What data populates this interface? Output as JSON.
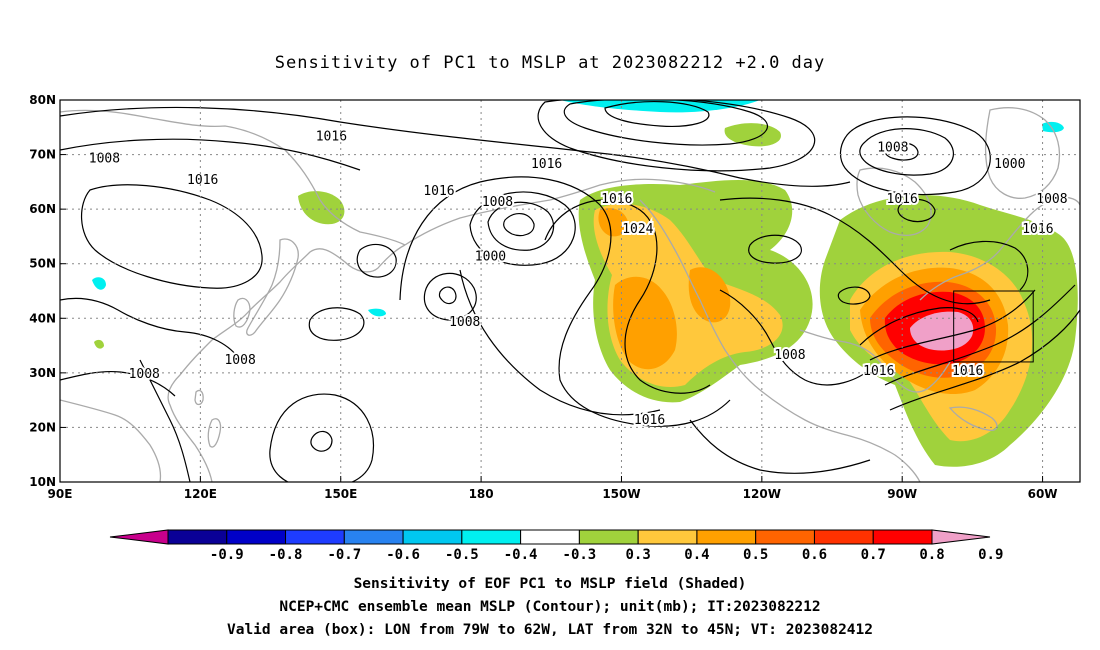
{
  "title": "Sensitivity of PC1 to MSLP at 2023082212 +2.0 day",
  "map": {
    "lon_ticks": [
      "90E",
      "120E",
      "150E",
      "180",
      "150W",
      "120W",
      "90W",
      "60W"
    ],
    "lat_ticks": [
      "80N",
      "70N",
      "60N",
      "50N",
      "40N",
      "30N",
      "20N",
      "10N"
    ],
    "lon_range": [
      90,
      308
    ],
    "lat_range": [
      10,
      80
    ],
    "grid": true,
    "valid_box": {
      "lon": [
        281,
        298
      ],
      "lat": [
        32,
        45
      ]
    },
    "contour_labels": [
      {
        "text": "1016",
        "lon": 148,
        "lat": 73.5
      },
      {
        "text": "1008",
        "lon": 99.5,
        "lat": 69.5
      },
      {
        "text": "1016",
        "lon": 120.5,
        "lat": 65.5
      },
      {
        "text": "1016",
        "lon": 194,
        "lat": 68.5
      },
      {
        "text": "1016",
        "lon": 171,
        "lat": 63.5
      },
      {
        "text": "1008",
        "lon": 183.5,
        "lat": 61.5
      },
      {
        "text": "1000",
        "lon": 182,
        "lat": 51.5
      },
      {
        "text": "1016",
        "lon": 209,
        "lat": 62
      },
      {
        "text": "1024",
        "lon": 213.5,
        "lat": 56.5
      },
      {
        "text": "1008",
        "lon": 268,
        "lat": 71.5
      },
      {
        "text": "1000",
        "lon": 293,
        "lat": 68.5
      },
      {
        "text": "1016",
        "lon": 270,
        "lat": 62
      },
      {
        "text": "1008",
        "lon": 302,
        "lat": 62
      },
      {
        "text": "1016",
        "lon": 299,
        "lat": 56.5
      },
      {
        "text": "1008",
        "lon": 176.5,
        "lat": 39.5
      },
      {
        "text": "1008",
        "lon": 128.5,
        "lat": 32.5
      },
      {
        "text": "1008",
        "lon": 108,
        "lat": 30
      },
      {
        "text": "1016",
        "lon": 216,
        "lat": 21.5
      },
      {
        "text": "1008",
        "lon": 246,
        "lat": 33.5
      },
      {
        "text": "1016",
        "lon": 265,
        "lat": 30.5
      },
      {
        "text": "1016",
        "lon": 284,
        "lat": 30.5
      }
    ]
  },
  "colorbar": {
    "colors": [
      "#c8008c",
      "#0a0096",
      "#0000c8",
      "#1e3cff",
      "#2882f0",
      "#00c8f0",
      "#00f0f0",
      "#ffffff",
      "#a0d23c",
      "#ffc83c",
      "#ffa000",
      "#ff6400",
      "#ff3200",
      "#ff0000",
      "#f0a0c8"
    ],
    "labels": [
      "-0.9",
      "-0.8",
      "-0.7",
      "-0.6",
      "-0.5",
      "-0.4",
      "-0.3",
      "0.3",
      "0.4",
      "0.5",
      "0.6",
      "0.7",
      "0.8",
      "0.9"
    ]
  },
  "captions": [
    "Sensitivity of EOF PC1 to MSLP field (Shaded)",
    "NCEP+CMC ensemble mean MSLP (Contour); unit(mb); IT:2023082212",
    "Valid area (box): LON from 79W to 62W, LAT from 32N to 45N; VT: 2023082412"
  ]
}
